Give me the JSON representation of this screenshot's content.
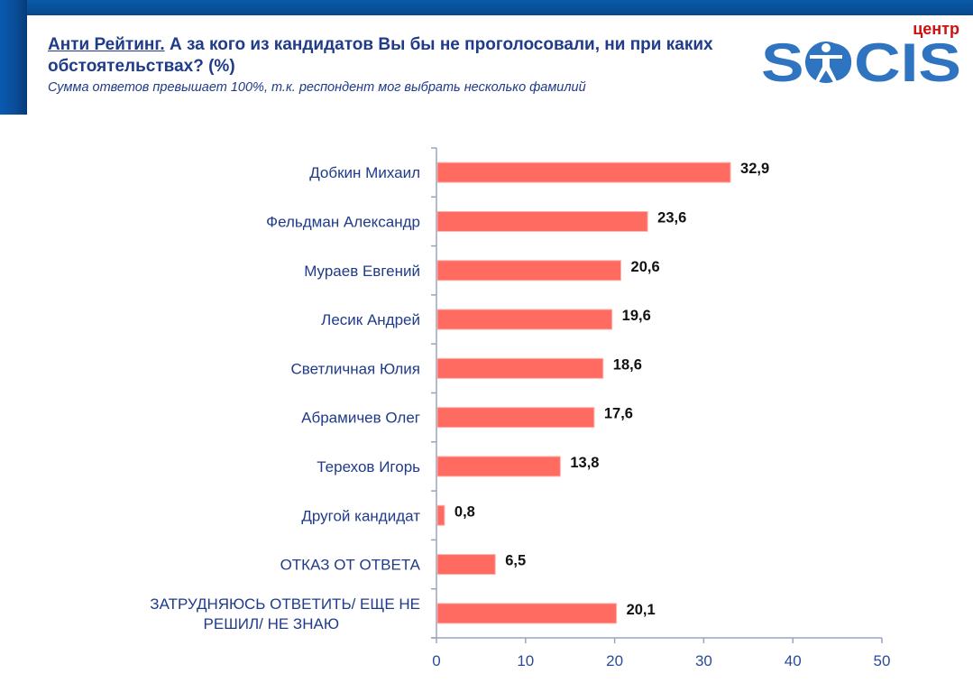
{
  "header": {
    "title_underlined": "Анти Рейтинг.",
    "title_rest": " А за кого из кандидатов Вы бы не проголосовали, ни при каких обстоятельствах? (%)",
    "subtitle": "Сумма ответов превышает 100%, т.к. респондент мог выбрать несколько фамилий"
  },
  "logo": {
    "top_word": "центр",
    "main_word": "SOCIS",
    "icon": "vitruvian-man-icon"
  },
  "colors": {
    "bar": "#ff6b61",
    "axis": "#9aa3c2",
    "brand_blue": "#2e74c0",
    "logo_red": "#cc1111"
  },
  "chart_data": {
    "type": "bar",
    "orientation": "horizontal",
    "title": "Анти Рейтинг. А за кого из кандидатов Вы бы не проголосовали, ни при каких обстоятельствах? (%)",
    "categories": [
      "Добкин Михаил",
      "Фельдман Александр",
      "Мураев Евгений",
      "Лесик Андрей",
      "Светличная Юлия",
      "Абрамичев Олег",
      "Терехов Игорь",
      "Другой кандидат",
      "ОТКАЗ ОТ ОТВЕТА",
      "ЗАТРУДНЯЮСЬ ОТВЕТИТЬ/ ЕЩЕ НЕ РЕШИЛ/ НЕ ЗНАЮ"
    ],
    "category_lines": [
      [
        "Добкин Михаил"
      ],
      [
        "Фельдман Александр"
      ],
      [
        "Мураев Евгений"
      ],
      [
        "Лесик Андрей"
      ],
      [
        "Светличная Юлия"
      ],
      [
        "Абрамичев Олег"
      ],
      [
        "Терехов Игорь"
      ],
      [
        "Другой кандидат"
      ],
      [
        "ОТКАЗ ОТ ОТВЕТА"
      ],
      [
        "ЗАТРУДНЯЮСЬ ОТВЕТИТЬ/ ЕЩЕ НЕ",
        "РЕШИЛ/ НЕ ЗНАЮ"
      ]
    ],
    "values": [
      32.9,
      23.6,
      20.6,
      19.6,
      18.6,
      17.6,
      13.8,
      0.8,
      6.5,
      20.1
    ],
    "value_labels": [
      "32,9",
      "23,6",
      "20,6",
      "19,6",
      "18,6",
      "17,6",
      "13,8",
      "0,8",
      "6,5",
      "20,1"
    ],
    "xlim": [
      0,
      50
    ],
    "xticks": [
      0,
      10,
      20,
      30,
      40,
      50
    ],
    "xtick_labels": [
      "0",
      "10",
      "20",
      "30",
      "40",
      "50"
    ],
    "xlabel": "",
    "ylabel": "",
    "grid": false,
    "legend": "none"
  }
}
